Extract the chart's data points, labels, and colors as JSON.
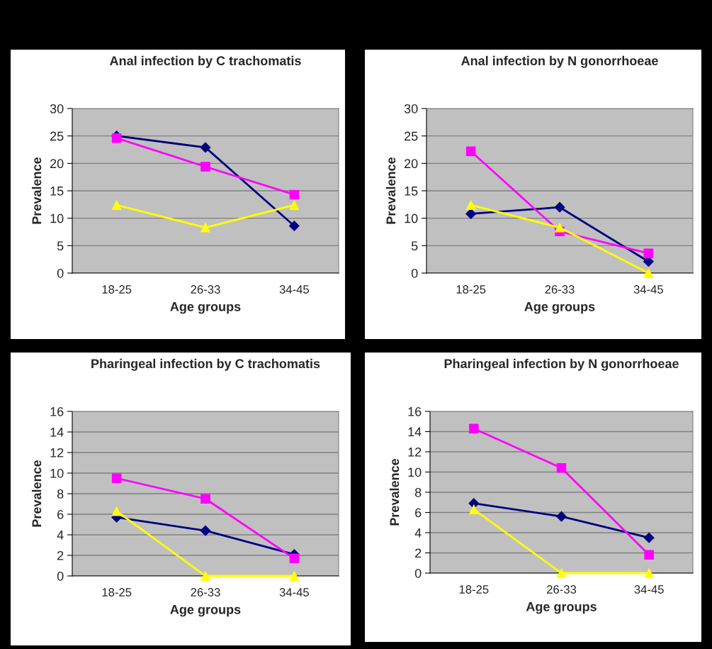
{
  "chart_data": [
    {
      "type": "line",
      "title": "Anal infection by C trachomatis",
      "xlabel": "Age groups",
      "ylabel": "Prevalence",
      "categories": [
        "18-25",
        "26-33",
        "34-45"
      ],
      "ylim": [
        0,
        30
      ],
      "yticks": [
        0,
        5,
        10,
        15,
        20,
        25,
        30
      ],
      "grid": "y",
      "series": [
        {
          "color": "#000080",
          "marker": "diamond",
          "values": [
            25,
            22.9,
            8.6
          ]
        },
        {
          "color": "#ff00ff",
          "marker": "square",
          "values": [
            24.6,
            19.4,
            14.3
          ]
        },
        {
          "color": "#ffff00",
          "marker": "triangle",
          "values": [
            12.4,
            8.3,
            12.4
          ]
        }
      ]
    },
    {
      "type": "line",
      "title": "Anal infection by N gonorrhoeae",
      "xlabel": "Age groups",
      "ylabel": "Prevalence",
      "categories": [
        "18-25",
        "26-33",
        "34-45"
      ],
      "ylim": [
        0,
        30
      ],
      "yticks": [
        0,
        5,
        10,
        15,
        20,
        25,
        30
      ],
      "grid": "y",
      "series": [
        {
          "color": "#000080",
          "marker": "diamond",
          "values": [
            10.8,
            12,
            2.1
          ]
        },
        {
          "color": "#ff00ff",
          "marker": "square",
          "values": [
            22.2,
            7.6,
            3.6
          ]
        },
        {
          "color": "#ffff00",
          "marker": "triangle",
          "values": [
            12.4,
            8.3,
            0
          ]
        }
      ]
    },
    {
      "type": "line",
      "title": "Pharingeal infection by C trachomatis",
      "xlabel": "Age groups",
      "ylabel": "Prevalence",
      "categories": [
        "18-25",
        "26-33",
        "34-45"
      ],
      "ylim": [
        0,
        16
      ],
      "yticks": [
        0,
        2,
        4,
        6,
        8,
        10,
        12,
        14,
        16
      ],
      "grid": "y",
      "series": [
        {
          "color": "#000080",
          "marker": "diamond",
          "values": [
            5.7,
            4.4,
            2.1
          ]
        },
        {
          "color": "#ff00ff",
          "marker": "square",
          "values": [
            9.5,
            7.5,
            1.7
          ]
        },
        {
          "color": "#ffff00",
          "marker": "triangle",
          "values": [
            6.3,
            0,
            0
          ]
        }
      ]
    },
    {
      "type": "line",
      "title": "Pharingeal infection by N gonorrhoeae",
      "xlabel": "Age groups",
      "ylabel": "Prevalence",
      "categories": [
        "18-25",
        "26-33",
        "34-45"
      ],
      "ylim": [
        0,
        16
      ],
      "yticks": [
        0,
        2,
        4,
        6,
        8,
        10,
        12,
        14,
        16
      ],
      "grid": "y",
      "series": [
        {
          "color": "#000080",
          "marker": "diamond",
          "values": [
            6.9,
            5.6,
            3.5
          ]
        },
        {
          "color": "#ff00ff",
          "marker": "square",
          "values": [
            14.3,
            10.4,
            1.8
          ]
        },
        {
          "color": "#ffff00",
          "marker": "triangle",
          "values": [
            6.3,
            0,
            0
          ]
        }
      ]
    }
  ]
}
